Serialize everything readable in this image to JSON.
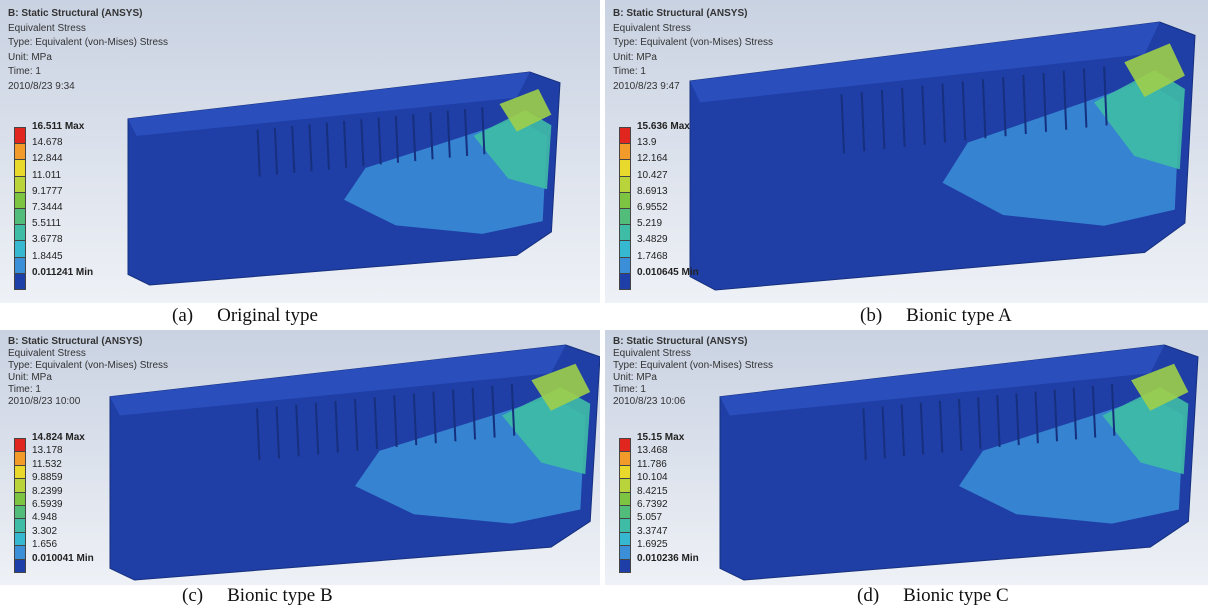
{
  "panels": [
    {
      "header": [
        "B: Static Structural (ANSYS)",
        "Equivalent Stress",
        "Type: Equivalent (von-Mises) Stress",
        "Unit: MPa",
        "Time: 1",
        "2010/8/23 9:34"
      ],
      "legend": [
        "16.511 Max",
        "14.678",
        "12.844",
        "11.011",
        "9.1777",
        "7.3444",
        "5.5111",
        "3.6778",
        "1.8445",
        "0.011241 Min"
      ],
      "caption_label": "(a)",
      "caption_name": "Original type"
    },
    {
      "header": [
        "B: Static Structural (ANSYS)",
        "Equivalent Stress",
        "Type: Equivalent (von-Mises) Stress",
        "Unit: MPa",
        "Time: 1",
        "2010/8/23 9:47"
      ],
      "legend": [
        "15.636 Max",
        "13.9",
        "12.164",
        "10.427",
        "8.6913",
        "6.9552",
        "5.219",
        "3.4829",
        "1.7468",
        "0.010645 Min"
      ],
      "caption_label": "(b)",
      "caption_name": "Bionic type A"
    },
    {
      "header": [
        "B: Static Structural (ANSYS)",
        "Equivalent Stress",
        "Type: Equivalent (von-Mises) Stress",
        "Unit: MPa",
        "Time: 1",
        "2010/8/23 10:00"
      ],
      "legend": [
        "14.824 Max",
        "13.178",
        "11.532",
        "9.8859",
        "8.2399",
        "6.5939",
        "4.948",
        "3.302",
        "1.656",
        "0.010041 Min"
      ],
      "caption_label": "(c)",
      "caption_name": "Bionic type B"
    },
    {
      "header": [
        "B: Static Structural (ANSYS)",
        "Equivalent Stress",
        "Type: Equivalent (von-Mises) Stress",
        "Unit: MPa",
        "Time: 1",
        "2010/8/23 10:06"
      ],
      "legend": [
        "15.15 Max",
        "13.468",
        "11.786",
        "10.104",
        "8.4215",
        "6.7392",
        "5.057",
        "3.3747",
        "1.6925",
        "0.010236 Min"
      ],
      "caption_label": "(d)",
      "caption_name": "Bionic type C"
    }
  ]
}
